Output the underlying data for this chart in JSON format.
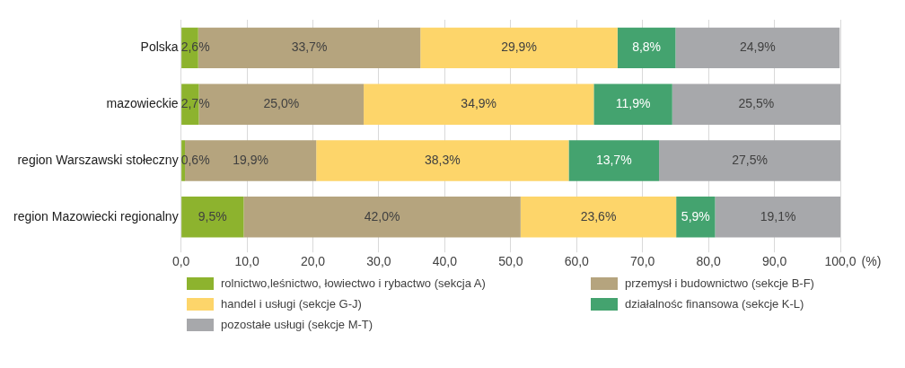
{
  "chart_data": {
    "type": "bar",
    "orientation": "horizontal",
    "stacked": true,
    "xlabel": "(%)",
    "categories": [
      "Polska",
      "mazowieckie",
      "region Warszawski stołeczny",
      "region Mazowiecki regionalny"
    ],
    "series": [
      {
        "name": "rolnictwo,leśnictwo, łowiectwo i rybactwo (sekcja A)",
        "color": "#8db32e",
        "values": [
          2.6,
          2.7,
          0.6,
          9.5
        ],
        "value_labels": [
          "2,6%",
          "2,7%",
          "0,6%",
          "9,5%"
        ]
      },
      {
        "name": "przemysł i budownictwo (sekcje B-F)",
        "color": "#b5a47e",
        "values": [
          33.7,
          25.0,
          19.9,
          42.0
        ],
        "value_labels": [
          "33,7%",
          "25,0%",
          "19,9%",
          "42,0%"
        ]
      },
      {
        "name": "handel i usługi (sekcje G-J)",
        "color": "#fdd56a",
        "values": [
          29.9,
          34.9,
          38.3,
          23.6
        ],
        "value_labels": [
          "29,9%",
          "34,9%",
          "38,3%",
          "23,6%"
        ]
      },
      {
        "name": "działalnośc finansowa (sekcje K-L)",
        "color": "#44a36f",
        "values": [
          8.8,
          11.9,
          13.7,
          5.9
        ],
        "value_labels": [
          "8,8%",
          "11,9%",
          "13,7%",
          "5,9%"
        ]
      },
      {
        "name": "pozostałe usługi (sekcje M-T)",
        "color": "#a7a8ab",
        "values": [
          24.9,
          25.5,
          27.5,
          19.1
        ],
        "value_labels": [
          "24,9%",
          "25,5%",
          "27,5%",
          "19,1%"
        ]
      }
    ],
    "xlim": [
      0,
      100
    ],
    "xticks": [
      {
        "value": 0,
        "label": "0,0"
      },
      {
        "value": 10,
        "label": "10,0"
      },
      {
        "value": 20,
        "label": "20,0"
      },
      {
        "value": 30,
        "label": "30,0"
      },
      {
        "value": 40,
        "label": "40,0"
      },
      {
        "value": 50,
        "label": "50,0"
      },
      {
        "value": 60,
        "label": "60,0"
      },
      {
        "value": 70,
        "label": "70,0"
      },
      {
        "value": 80,
        "label": "80,0"
      },
      {
        "value": 90,
        "label": "90,0"
      },
      {
        "value": 100,
        "label": "100,0"
      }
    ],
    "grid": "x",
    "legend": "bottom"
  }
}
